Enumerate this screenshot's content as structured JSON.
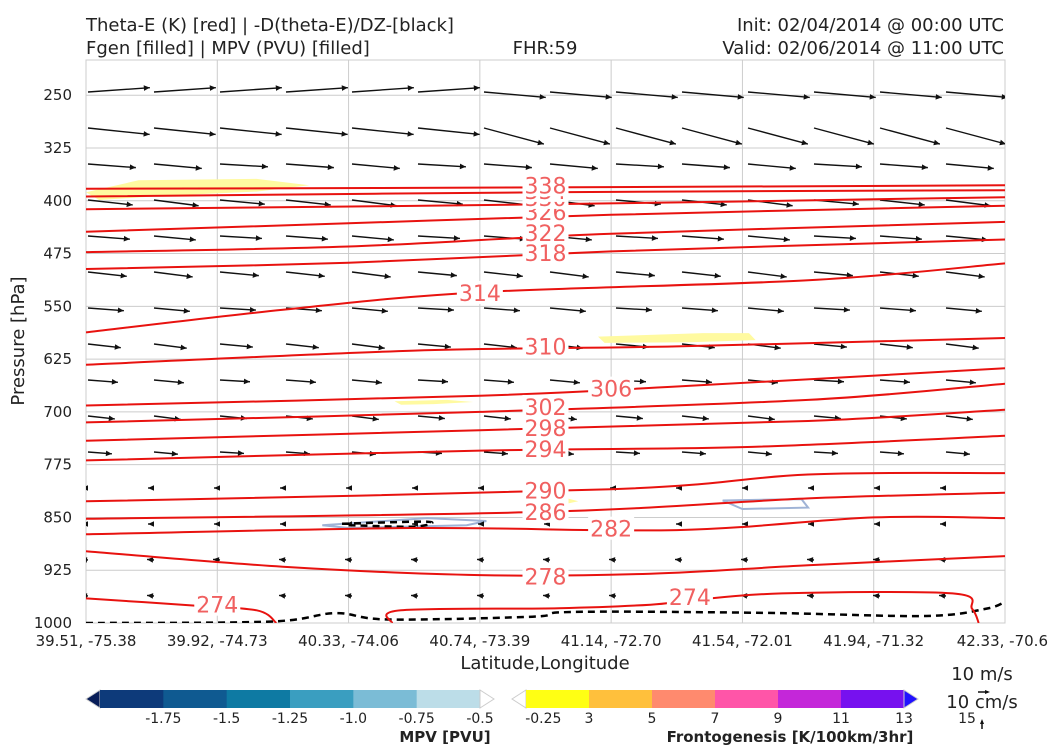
{
  "header": {
    "title_line1": "Theta-E (K) [red] | -D(theta-E)/DZ-[black]",
    "title_line2": "Fgen [filled] | MPV (PVU) [filled]",
    "fhr": "FHR:59",
    "init": "Init: 02/04/2014 @ 00:00 UTC",
    "valid": "Valid: 02/06/2014 @ 11:00 UTC"
  },
  "colors": {
    "theta_e": "#e8120f",
    "theta_e_label": "#f06060",
    "arrow": "#111111",
    "fgen_fill": "#fffaa0",
    "mpv_contour": "#9fb3d6",
    "gridline": "#cccccc"
  },
  "vector_key": {
    "horizontal_label": "10 m/s",
    "vertical_label": "10 cm/s"
  },
  "mpv_colorbar": {
    "label": "MPV [PVU]",
    "ticks": [
      "-1.75",
      "-1.5",
      "-1.25",
      "-1.0",
      "-0.75",
      "-0.5",
      "-0.25"
    ],
    "colors": [
      "#081d58",
      "#0d3a7a",
      "#0f5a91",
      "#0e7aa3",
      "#3a9ec0",
      "#7bbcd6",
      "#bcdde8",
      "#ffffff"
    ]
  },
  "fgen_colorbar": {
    "label": "Frontogenesis [K/100km/3hr]",
    "ticks": [
      "3",
      "5",
      "7",
      "9",
      "11",
      "13",
      "15"
    ],
    "colors": [
      "#ffffff",
      "#ffff14",
      "#ffc03c",
      "#ff8a6e",
      "#ff55a8",
      "#c427d9",
      "#7711ef",
      "#2211ff"
    ]
  },
  "chart_data": {
    "type": "cross-section",
    "xlabel": "Latitude,Longitude",
    "ylabel": "Pressure [hPa]",
    "xlim": [
      0,
      7
    ],
    "ylim": [
      1000,
      200
    ],
    "x_ticks": [
      "39.51, -75.38",
      "39.92, -74.73",
      "40.33, -74.06",
      "40.74, -73.39",
      "41.14, -72.70",
      "41.54, -72.01",
      "41.94, -71.32",
      "42.33, -70.6"
    ],
    "y_ticks": [
      250,
      325,
      400,
      475,
      550,
      625,
      700,
      775,
      850,
      925,
      1000
    ],
    "grid": true,
    "theta_e_contours": [
      {
        "value": "274",
        "pts": [
          [
            0,
            965
          ],
          [
            0.8,
            975
          ],
          [
            1.3,
            982
          ],
          [
            1.45,
            1000
          ]
        ],
        "label_at": [
          1.0,
          974
        ]
      },
      {
        "value": "274",
        "pts": [
          [
            2.33,
            1000
          ],
          [
            2.4,
            982
          ],
          [
            3.6,
            979
          ],
          [
            4.3,
            974
          ],
          [
            4.6,
            968
          ],
          [
            5.3,
            958
          ],
          [
            6.6,
            958
          ],
          [
            6.75,
            980
          ],
          [
            6.8,
            1000
          ]
        ],
        "label_at": [
          4.6,
          963
        ]
      },
      {
        "value": "278",
        "pts": [
          [
            0,
            898
          ],
          [
            1.5,
            920
          ],
          [
            3.0,
            932
          ],
          [
            4.3,
            930
          ],
          [
            5.5,
            918
          ],
          [
            7,
            905
          ]
        ],
        "label_at": [
          3.5,
          934
        ]
      },
      {
        "value": "282",
        "pts": [
          [
            0,
            874
          ],
          [
            2.5,
            865
          ],
          [
            4.5,
            868
          ],
          [
            6.0,
            850
          ],
          [
            7,
            851
          ]
        ],
        "label_at": [
          4.0,
          866
        ]
      },
      {
        "value": "286",
        "pts": [
          [
            0,
            852
          ],
          [
            3.5,
            842
          ],
          [
            5.5,
            823
          ],
          [
            7,
            815
          ]
        ],
        "label_at": [
          3.5,
          842
        ]
      },
      {
        "value": "290",
        "pts": [
          [
            0,
            827
          ],
          [
            4.0,
            810
          ],
          [
            5.5,
            789
          ],
          [
            7,
            787
          ]
        ],
        "label_at": [
          3.5,
          812
        ]
      },
      {
        "value": "294",
        "pts": [
          [
            0,
            769
          ],
          [
            3.0,
            755
          ],
          [
            5.0,
            750
          ],
          [
            7,
            734
          ]
        ],
        "label_at": [
          3.5,
          753
        ]
      },
      {
        "value": "298",
        "pts": [
          [
            0,
            741
          ],
          [
            3.0,
            726
          ],
          [
            5.5,
            713
          ],
          [
            7,
            697
          ]
        ],
        "label_at": [
          3.5,
          723
        ]
      },
      {
        "value": "302",
        "pts": [
          [
            0,
            715
          ],
          [
            3.0,
            700
          ],
          [
            5.5,
            683
          ],
          [
            7,
            660
          ]
        ],
        "label_at": [
          3.5,
          693
        ]
      },
      {
        "value": "306",
        "pts": [
          [
            0,
            691
          ],
          [
            3.0,
            677
          ],
          [
            4.5,
            664
          ],
          [
            7,
            638
          ]
        ],
        "label_at": [
          4.0,
          667
        ]
      },
      {
        "value": "310",
        "pts": [
          [
            0,
            633
          ],
          [
            2.5,
            613
          ],
          [
            4.5,
            607
          ],
          [
            7,
            595
          ]
        ],
        "label_at": [
          3.5,
          607
        ]
      },
      {
        "value": "314",
        "pts": [
          [
            0,
            587
          ],
          [
            1.5,
            555
          ],
          [
            3.0,
            530
          ],
          [
            5.5,
            513
          ],
          [
            7,
            489
          ]
        ],
        "label_at": [
          3.0,
          531
        ]
      },
      {
        "value": "318",
        "pts": [
          [
            0,
            497
          ],
          [
            2.0,
            488
          ],
          [
            4.0,
            472
          ],
          [
            7,
            455
          ]
        ],
        "label_at": [
          3.5,
          474
        ]
      },
      {
        "value": "322",
        "pts": [
          [
            0,
            473
          ],
          [
            2.0,
            465
          ],
          [
            4.0,
            447
          ],
          [
            7,
            430
          ]
        ],
        "label_at": [
          3.5,
          446
        ]
      },
      {
        "value": "326",
        "pts": [
          [
            0,
            444
          ],
          [
            2.0,
            432
          ],
          [
            4.0,
            420
          ],
          [
            7,
            407
          ]
        ],
        "label_at": [
          3.5,
          416
        ]
      },
      {
        "value": "330",
        "pts": [
          [
            0,
            412
          ],
          [
            3.5,
            405
          ],
          [
            7,
            395
          ]
        ],
        "label_at": [
          3.5,
          396
        ]
      },
      {
        "value": "334",
        "pts": [
          [
            0,
            394
          ],
          [
            3.5,
            388
          ],
          [
            7,
            385
          ]
        ],
        "label_at": [
          3.5,
          386
        ]
      },
      {
        "value": "338",
        "pts": [
          [
            0,
            383
          ],
          [
            3.5,
            381
          ],
          [
            7,
            378
          ]
        ],
        "label_at": [
          3.5,
          378
        ]
      }
    ],
    "fgen_regions": [
      {
        "level": "3",
        "pts": [
          [
            0,
            388
          ],
          [
            0.4,
            371
          ],
          [
            1.3,
            369
          ],
          [
            1.7,
            378
          ],
          [
            1.3,
            387
          ],
          [
            0.6,
            393
          ],
          [
            0.1,
            399
          ]
        ]
      },
      {
        "level": "3",
        "pts": [
          [
            3.9,
            593
          ],
          [
            4.7,
            588
          ],
          [
            5.05,
            588
          ],
          [
            5.1,
            598
          ],
          [
            4.6,
            601
          ],
          [
            3.95,
            602
          ]
        ]
      },
      {
        "level": "3",
        "pts": [
          [
            2.35,
            685
          ],
          [
            2.75,
            683
          ],
          [
            2.95,
            686
          ],
          [
            2.65,
            689
          ],
          [
            2.4,
            690
          ]
        ]
      },
      {
        "level": "3",
        "pts": [
          [
            3.4,
            827
          ],
          [
            3.65,
            822
          ],
          [
            3.75,
            827
          ],
          [
            3.6,
            833
          ],
          [
            3.45,
            832
          ]
        ]
      }
    ],
    "mpv_regions": [
      {
        "level": "-0.25",
        "pts": [
          [
            1.8,
            861
          ],
          [
            2.6,
            851
          ],
          [
            3.05,
            855
          ],
          [
            2.9,
            861
          ],
          [
            2.0,
            865
          ]
        ]
      },
      {
        "level": "-0.25",
        "pts": [
          [
            4.85,
            826
          ],
          [
            5.45,
            824
          ],
          [
            5.5,
            836
          ],
          [
            5.0,
            838
          ]
        ]
      }
    ],
    "dashed_contours": [
      {
        "pts": [
          [
            0,
            1000
          ],
          [
            1.4,
            998
          ],
          [
            1.9,
            986
          ],
          [
            2.3,
            995
          ],
          [
            3.4,
            991
          ],
          [
            3.6,
            985
          ],
          [
            4.2,
            984
          ],
          [
            5.3,
            986
          ],
          [
            6.4,
            990
          ],
          [
            6.85,
            980
          ],
          [
            7,
            970
          ]
        ]
      },
      {
        "pts": [
          [
            1.95,
            859
          ],
          [
            2.6,
            856
          ],
          [
            2.5,
            863
          ],
          [
            2.0,
            861
          ]
        ]
      }
    ]
  }
}
